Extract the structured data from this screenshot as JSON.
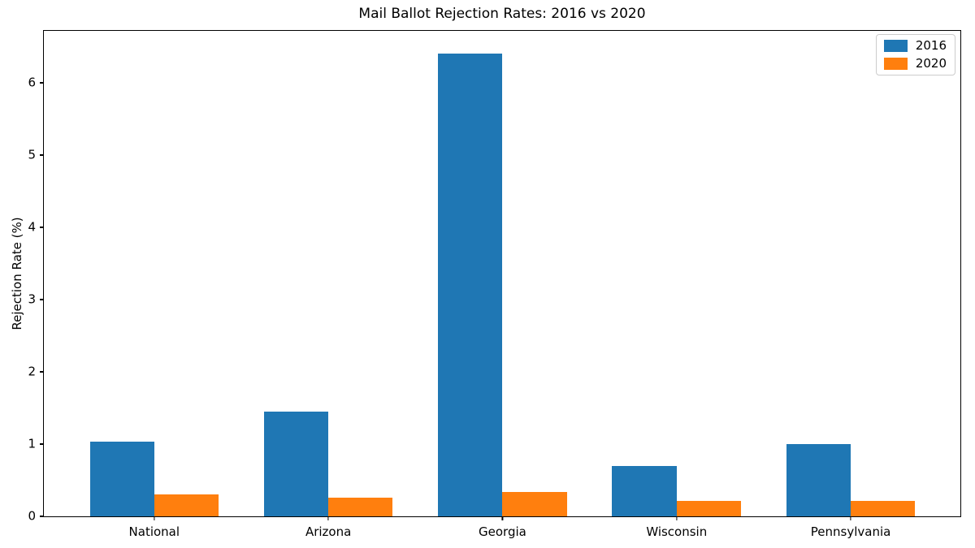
{
  "title": "Mail Ballot Rejection Rates: 2016 vs 2020",
  "chart_data": {
    "type": "bar",
    "title": "Mail Ballot Rejection Rates: 2016 vs 2020",
    "categories": [
      "National",
      "Arizona",
      "Georgia",
      "Wisconsin",
      "Pennsylvania"
    ],
    "series": [
      {
        "name": "2016",
        "color": "#1f77b4",
        "values": [
          1.03,
          1.45,
          6.4,
          0.7,
          1.0
        ]
      },
      {
        "name": "2020",
        "color": "#ff7f0e",
        "values": [
          0.3,
          0.26,
          0.34,
          0.21,
          0.21
        ]
      }
    ],
    "xlabel": "",
    "ylabel": "Rejection Rate (%)",
    "ylim": [
      0,
      6.72
    ],
    "yticks": [
      0,
      1,
      2,
      3,
      4,
      5,
      6
    ],
    "grid": false,
    "legend_position": "upper right",
    "background": "#ffffff",
    "axis_color": "#000000"
  }
}
